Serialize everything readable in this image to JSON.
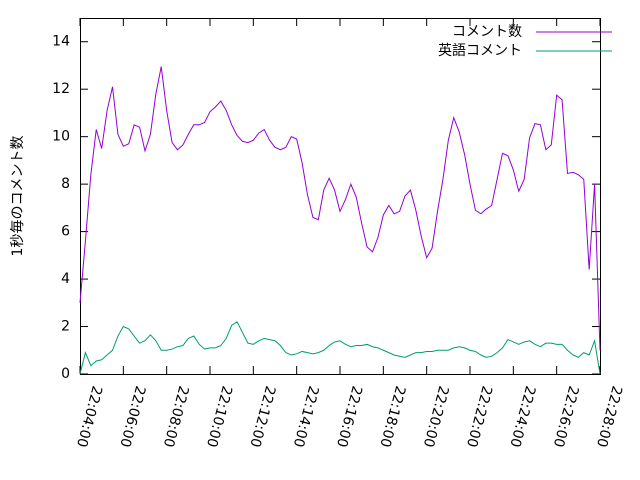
{
  "chart_data": {
    "type": "line",
    "ylabel": "1秒毎のコメント数",
    "legend": "top-right",
    "x": [
      "22:04:00",
      "22:04:15",
      "22:04:30",
      "22:04:45",
      "22:05:00",
      "22:05:15",
      "22:05:30",
      "22:05:45",
      "22:06:00",
      "22:06:15",
      "22:06:30",
      "22:06:45",
      "22:07:00",
      "22:07:15",
      "22:07:30",
      "22:07:45",
      "22:08:00",
      "22:08:15",
      "22:08:30",
      "22:08:45",
      "22:09:00",
      "22:09:15",
      "22:09:30",
      "22:09:45",
      "22:10:00",
      "22:10:15",
      "22:10:30",
      "22:10:45",
      "22:11:00",
      "22:11:15",
      "22:11:30",
      "22:11:45",
      "22:12:00",
      "22:12:15",
      "22:12:30",
      "22:12:45",
      "22:13:00",
      "22:13:15",
      "22:13:30",
      "22:13:45",
      "22:14:00",
      "22:14:15",
      "22:14:30",
      "22:14:45",
      "22:15:00",
      "22:15:15",
      "22:15:30",
      "22:15:45",
      "22:16:00",
      "22:16:15",
      "22:16:30",
      "22:16:45",
      "22:17:00",
      "22:17:15",
      "22:17:30",
      "22:17:45",
      "22:18:00",
      "22:18:15",
      "22:18:30",
      "22:18:45",
      "22:19:00",
      "22:19:15",
      "22:19:30",
      "22:19:45",
      "22:20:00",
      "22:20:15",
      "22:20:30",
      "22:20:45",
      "22:21:00",
      "22:21:15",
      "22:21:30",
      "22:21:45",
      "22:22:00",
      "22:22:15",
      "22:22:30",
      "22:22:45",
      "22:23:00",
      "22:23:15",
      "22:23:30",
      "22:23:45",
      "22:24:00",
      "22:24:15",
      "22:24:30",
      "22:24:45",
      "22:25:00",
      "22:25:15",
      "22:25:30",
      "22:25:45",
      "22:26:00",
      "22:26:15",
      "22:26:30",
      "22:26:45",
      "22:27:00",
      "22:27:15",
      "22:27:30",
      "22:27:45",
      "22:28:00"
    ],
    "series": [
      {
        "name": "コメント数",
        "color": "#9400d3",
        "values": [
          3.0,
          5.6,
          8.4,
          10.3,
          9.5,
          11.1,
          12.1,
          10.1,
          9.6,
          9.7,
          10.5,
          10.4,
          9.4,
          10.1,
          11.8,
          12.95,
          11.1,
          9.75,
          9.45,
          9.65,
          10.1,
          10.5,
          10.5,
          10.6,
          11.05,
          11.25,
          11.5,
          11.1,
          10.5,
          10.05,
          9.8,
          9.75,
          9.85,
          10.15,
          10.3,
          9.85,
          9.55,
          9.45,
          9.55,
          10.0,
          9.9,
          8.9,
          7.55,
          6.6,
          6.5,
          7.75,
          8.25,
          7.75,
          6.85,
          7.35,
          8.0,
          7.45,
          6.35,
          5.35,
          5.15,
          5.75,
          6.7,
          7.1,
          6.75,
          6.85,
          7.5,
          7.75,
          6.9,
          5.8,
          4.9,
          5.3,
          6.85,
          8.2,
          9.85,
          10.8,
          10.2,
          9.25,
          8.0,
          6.9,
          6.75,
          6.95,
          7.1,
          8.2,
          9.3,
          9.2,
          8.6,
          7.7,
          8.2,
          9.95,
          10.55,
          10.5,
          9.45,
          9.65,
          11.75,
          11.55,
          8.45,
          8.5,
          8.4,
          8.2,
          4.4,
          8.0,
          1.0
        ]
      },
      {
        "name": "英語コメント",
        "color": "#009e73",
        "values": [
          0,
          0.9,
          0.35,
          0.55,
          0.6,
          0.8,
          1.0,
          1.6,
          2.0,
          1.9,
          1.6,
          1.3,
          1.4,
          1.65,
          1.4,
          1.0,
          1.0,
          1.05,
          1.15,
          1.2,
          1.5,
          1.6,
          1.25,
          1.05,
          1.1,
          1.1,
          1.2,
          1.5,
          2.05,
          2.2,
          1.75,
          1.3,
          1.25,
          1.4,
          1.5,
          1.45,
          1.4,
          1.2,
          0.9,
          0.8,
          0.85,
          0.95,
          0.9,
          0.85,
          0.9,
          1.0,
          1.2,
          1.35,
          1.4,
          1.25,
          1.15,
          1.2,
          1.2,
          1.25,
          1.15,
          1.1,
          1.0,
          0.9,
          0.8,
          0.75,
          0.7,
          0.8,
          0.9,
          0.9,
          0.95,
          0.95,
          1.0,
          1.0,
          1.0,
          1.1,
          1.15,
          1.1,
          1.0,
          0.95,
          0.8,
          0.7,
          0.75,
          0.9,
          1.1,
          1.45,
          1.35,
          1.25,
          1.35,
          1.4,
          1.25,
          1.15,
          1.3,
          1.3,
          1.25,
          1.25,
          1.0,
          0.8,
          0.7,
          0.9,
          0.8,
          1.4,
          0.0
        ]
      }
    ],
    "xlim": [
      "22:04:00",
      "22:28:00"
    ],
    "xticks": [
      "22:04:00",
      "22:06:00",
      "22:08:00",
      "22:10:00",
      "22:12:00",
      "22:14:00",
      "22:16:00",
      "22:18:00",
      "22:20:00",
      "22:22:00",
      "22:24:00",
      "22:26:00",
      "22:28:00"
    ],
    "ylim": [
      0,
      15
    ],
    "yticks": [
      0,
      2,
      4,
      6,
      8,
      10,
      12,
      14
    ]
  }
}
